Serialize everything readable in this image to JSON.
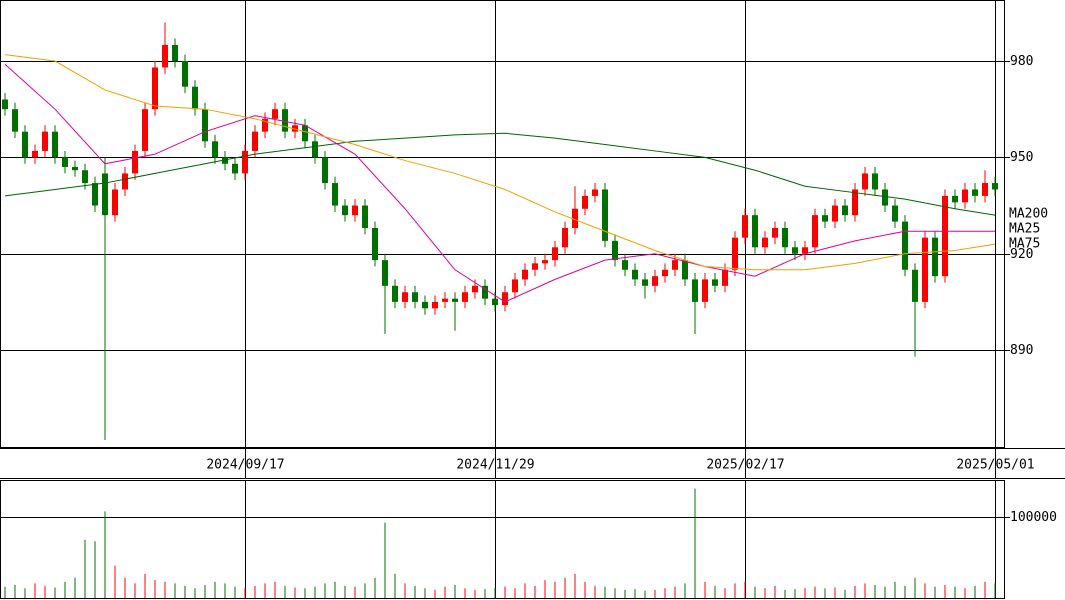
{
  "chart_data": {
    "type": "candlestick",
    "categories": [
      null,
      null,
      null,
      null,
      null,
      null,
      null,
      null,
      null,
      null,
      null,
      null,
      null,
      null,
      null,
      null,
      null,
      null,
      null,
      null,
      null,
      null,
      null,
      null,
      "2024/09/17",
      null,
      null,
      null,
      null,
      null,
      null,
      null,
      null,
      null,
      null,
      null,
      null,
      null,
      null,
      null,
      null,
      null,
      null,
      null,
      null,
      null,
      null,
      null,
      null,
      "2024/11/29",
      null,
      null,
      null,
      null,
      null,
      null,
      null,
      null,
      null,
      null,
      null,
      null,
      null,
      null,
      null,
      null,
      null,
      null,
      null,
      null,
      null,
      null,
      null,
      null,
      "2025/02/17",
      null,
      null,
      null,
      null,
      null,
      null,
      null,
      null,
      null,
      null,
      null,
      null,
      null,
      null,
      null,
      null,
      null,
      null,
      null,
      null,
      null,
      null,
      null,
      null,
      "2025/05/01"
    ],
    "open": [
      968,
      965,
      958,
      950,
      952,
      958,
      950,
      947,
      946,
      942,
      945,
      932,
      940,
      945,
      952,
      965,
      978,
      985,
      980,
      972,
      965,
      955,
      950,
      948,
      945,
      952,
      958,
      962,
      965,
      958,
      960,
      955,
      950,
      942,
      935,
      932,
      935,
      928,
      918,
      910,
      905,
      908,
      905,
      903,
      905,
      906,
      905,
      908,
      910,
      906,
      904,
      908,
      912,
      915,
      917,
      918,
      922,
      928,
      934,
      938,
      940,
      924,
      918,
      915,
      912,
      910,
      913,
      915,
      918,
      912,
      905,
      912,
      910,
      915,
      925,
      932,
      922,
      925,
      928,
      922,
      920,
      922,
      932,
      930,
      935,
      932,
      940,
      945,
      940,
      935,
      930,
      915,
      905,
      925,
      913,
      938,
      936,
      940,
      938,
      942
    ],
    "high": [
      970,
      967,
      960,
      954,
      960,
      960,
      952,
      949,
      948,
      944,
      950,
      942,
      947,
      954,
      967,
      980,
      992,
      987,
      982,
      974,
      967,
      957,
      952,
      950,
      954,
      960,
      964,
      967,
      967,
      962,
      962,
      957,
      952,
      944,
      937,
      937,
      937,
      930,
      920,
      912,
      910,
      910,
      907,
      907,
      908,
      908,
      910,
      912,
      912,
      908,
      910,
      914,
      917,
      919,
      920,
      924,
      930,
      941,
      940,
      942,
      942,
      926,
      920,
      917,
      914,
      915,
      917,
      920,
      920,
      914,
      914,
      914,
      917,
      927,
      934,
      934,
      927,
      930,
      930,
      924,
      924,
      934,
      934,
      937,
      937,
      942,
      947,
      947,
      942,
      937,
      932,
      917,
      927,
      927,
      940,
      940,
      942,
      942,
      946,
      944
    ],
    "low": [
      963,
      956,
      948,
      948,
      950,
      948,
      945,
      944,
      940,
      933,
      862,
      930,
      938,
      943,
      950,
      963,
      976,
      978,
      970,
      963,
      953,
      948,
      946,
      943,
      943,
      950,
      956,
      960,
      956,
      956,
      953,
      948,
      940,
      933,
      930,
      930,
      926,
      916,
      895,
      903,
      903,
      903,
      901,
      901,
      903,
      896,
      903,
      906,
      904,
      902,
      902,
      906,
      910,
      913,
      915,
      916,
      920,
      926,
      932,
      936,
      922,
      916,
      913,
      910,
      906,
      908,
      911,
      913,
      910,
      895,
      903,
      908,
      908,
      913,
      923,
      920,
      920,
      923,
      920,
      918,
      918,
      920,
      928,
      928,
      930,
      930,
      938,
      938,
      933,
      928,
      913,
      888,
      903,
      911,
      911,
      934,
      934,
      936,
      936,
      938
    ],
    "close": [
      965,
      958,
      950,
      952,
      958,
      950,
      947,
      946,
      942,
      935,
      932,
      940,
      945,
      952,
      965,
      978,
      985,
      980,
      972,
      965,
      955,
      950,
      948,
      945,
      952,
      958,
      962,
      965,
      958,
      960,
      955,
      950,
      942,
      935,
      932,
      935,
      928,
      918,
      910,
      905,
      908,
      905,
      903,
      905,
      906,
      905,
      908,
      910,
      906,
      904,
      908,
      912,
      915,
      917,
      918,
      922,
      928,
      934,
      938,
      940,
      924,
      918,
      915,
      912,
      910,
      913,
      915,
      918,
      912,
      905,
      912,
      910,
      915,
      925,
      932,
      922,
      925,
      928,
      922,
      920,
      922,
      932,
      930,
      935,
      932,
      940,
      945,
      940,
      935,
      930,
      915,
      905,
      925,
      913,
      938,
      936,
      940,
      938,
      942,
      940
    ],
    "volume": [
      14000,
      16000,
      12000,
      18000,
      15000,
      13000,
      20000,
      25000,
      72000,
      70000,
      107000,
      40000,
      25000,
      18000,
      30000,
      22000,
      20000,
      18000,
      15000,
      12000,
      16000,
      20000,
      18000,
      14000,
      12000,
      15000,
      18000,
      20000,
      15000,
      13000,
      12000,
      14000,
      18000,
      20000,
      15000,
      14000,
      18000,
      25000,
      93000,
      30000,
      18000,
      15000,
      12000,
      10000,
      14000,
      16000,
      12000,
      10000,
      11000,
      12000,
      14000,
      12000,
      18000,
      15000,
      22000,
      20000,
      25000,
      30000,
      20000,
      15000,
      14000,
      12000,
      10000,
      11000,
      9000,
      10000,
      12000,
      14000,
      18000,
      135000,
      20000,
      15000,
      12000,
      18000,
      20000,
      14000,
      12000,
      15000,
      10000,
      11000,
      12000,
      14000,
      12000,
      13000,
      10000,
      15000,
      18000,
      16000,
      14000,
      20000,
      15000,
      25000,
      18000,
      14000,
      16000,
      14000,
      12000,
      15000,
      20000,
      18000
    ],
    "up_color": "#ff0000",
    "down_color": "#007000",
    "ylim": [
      859.5,
      999
    ],
    "yticks": [
      890,
      920,
      950,
      980
    ],
    "volume_ylim": [
      0,
      145700
    ],
    "volume_yticks": [
      100000
    ],
    "series": [
      {
        "name": "MA200",
        "color": "#006400",
        "x": [
          0,
          5,
          10,
          15,
          20,
          25,
          30,
          35,
          40,
          45,
          50,
          55,
          60,
          65,
          70,
          75,
          80,
          85,
          90,
          95,
          99
        ],
        "values": [
          938,
          940,
          942,
          945,
          948,
          951,
          953,
          955,
          956,
          957,
          957.5,
          956,
          954,
          952,
          950,
          946,
          941,
          939,
          937,
          934,
          932
        ]
      },
      {
        "name": "MA25",
        "color": "#e0009a",
        "x": [
          0,
          5,
          10,
          15,
          20,
          25,
          30,
          35,
          40,
          45,
          50,
          55,
          60,
          65,
          70,
          75,
          80,
          85,
          90,
          95,
          99
        ],
        "values": [
          979,
          965,
          948,
          951,
          958,
          963,
          960,
          951,
          934,
          915,
          905,
          912,
          918,
          920,
          916,
          913,
          920,
          924,
          927,
          927,
          927
        ]
      },
      {
        "name": "MA75",
        "color": "#f0a000",
        "x": [
          0,
          5,
          10,
          15,
          20,
          25,
          30,
          35,
          40,
          45,
          50,
          55,
          60,
          65,
          70,
          75,
          80,
          85,
          90,
          95,
          99
        ],
        "values": [
          982,
          980,
          971,
          966,
          965,
          962,
          958,
          954,
          949,
          945,
          940,
          933,
          927,
          921,
          916,
          915,
          915,
          917,
          920,
          921,
          923
        ]
      }
    ]
  }
}
